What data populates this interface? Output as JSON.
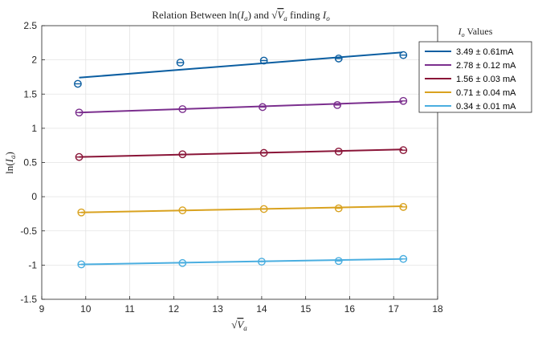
{
  "chart_data": {
    "type": "scatter",
    "title": {
      "prefix": "Relation Between ln(",
      "ia_base": "I",
      "ia_sub": "a",
      "mid": ") and ",
      "sqrt_symbol": "√",
      "va_base": "V",
      "va_sub": "a",
      "suffix": " finding ",
      "io_base": "I",
      "io_sub": "o"
    },
    "xlabel": {
      "sqrt_symbol": "√",
      "base": "V",
      "sub": "a"
    },
    "ylabel": {
      "prefix": "ln(",
      "base": "I",
      "sub": "a",
      "suffix": ")"
    },
    "xlim": [
      9,
      18
    ],
    "ylim": [
      -1.5,
      2.5
    ],
    "xticks": [
      9,
      10,
      11,
      12,
      13,
      14,
      15,
      16,
      17,
      18
    ],
    "yticks": [
      2.5,
      2,
      1.5,
      1,
      0.5,
      0,
      -0.5,
      -1,
      -1.5
    ],
    "ytick_labels": [
      "2.5",
      "2",
      "1.5",
      "1",
      "0.5",
      "0",
      "-0.5",
      "-1",
      "-1.5"
    ],
    "grid": true,
    "legend": {
      "title": {
        "base": "I",
        "sub": "o",
        "text": " Values"
      },
      "placement": "outside-right"
    },
    "series": [
      {
        "name": "3.49 ± 0.61mA",
        "color": "#0b5ea1",
        "x": [
          9.82,
          12.15,
          14.05,
          15.75,
          17.22
        ],
        "y": [
          1.65,
          1.96,
          1.99,
          2.02,
          2.07
        ],
        "fit": [
          [
            9.85,
            1.74
          ],
          [
            17.2,
            2.11
          ]
        ]
      },
      {
        "name": "2.78 ± 0.12 mA",
        "color": "#7b2f8e",
        "x": [
          9.85,
          12.2,
          14.02,
          15.72,
          17.22
        ],
        "y": [
          1.23,
          1.28,
          1.31,
          1.34,
          1.4
        ],
        "fit": [
          [
            9.85,
            1.23
          ],
          [
            17.2,
            1.39
          ]
        ]
      },
      {
        "name": "1.56 ± 0.03 mA",
        "color": "#8a1538",
        "x": [
          9.85,
          12.2,
          14.05,
          15.75,
          17.22
        ],
        "y": [
          0.58,
          0.62,
          0.64,
          0.66,
          0.68
        ],
        "fit": [
          [
            9.85,
            0.58
          ],
          [
            17.2,
            0.69
          ]
        ]
      },
      {
        "name": "0.71 ± 0.04 mA",
        "color": "#d9a21f",
        "x": [
          9.9,
          12.2,
          14.05,
          15.75,
          17.22
        ],
        "y": [
          -0.23,
          -0.2,
          -0.18,
          -0.17,
          -0.15
        ],
        "fit": [
          [
            9.9,
            -0.23
          ],
          [
            17.2,
            -0.14
          ]
        ]
      },
      {
        "name": "0.34 ± 0.01 mA",
        "color": "#4aaee0",
        "x": [
          9.9,
          12.2,
          14.0,
          15.75,
          17.22
        ],
        "y": [
          -0.99,
          -0.97,
          -0.95,
          -0.94,
          -0.91
        ],
        "fit": [
          [
            9.9,
            -0.99
          ],
          [
            17.2,
            -0.91
          ]
        ]
      }
    ]
  }
}
